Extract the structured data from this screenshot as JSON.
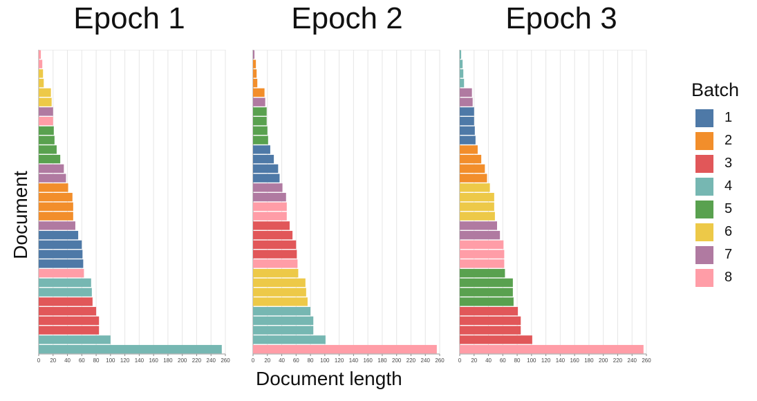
{
  "legend": {
    "title": "Batch",
    "items": [
      {
        "label": "1",
        "color": "#4e79a7"
      },
      {
        "label": "2",
        "color": "#f28e2b"
      },
      {
        "label": "3",
        "color": "#e15759"
      },
      {
        "label": "4",
        "color": "#76b7b2"
      },
      {
        "label": "5",
        "color": "#59a14f"
      },
      {
        "label": "6",
        "color": "#edc948"
      },
      {
        "label": "7",
        "color": "#b07aa1"
      },
      {
        "label": "8",
        "color": "#ff9da7"
      }
    ]
  },
  "axes": {
    "xlabel": "Document length",
    "ylabel": "Document"
  },
  "chart_data": [
    {
      "type": "bar",
      "title": "Epoch 1",
      "xlim": [
        0,
        260
      ],
      "xticks": [
        0,
        20,
        40,
        60,
        80,
        100,
        120,
        140,
        160,
        180,
        200,
        220,
        240,
        260
      ],
      "bars": [
        {
          "batch": "8",
          "value": 3
        },
        {
          "batch": "8",
          "value": 5
        },
        {
          "batch": "6",
          "value": 6
        },
        {
          "batch": "6",
          "value": 7
        },
        {
          "batch": "6",
          "value": 17
        },
        {
          "batch": "6",
          "value": 18
        },
        {
          "batch": "7",
          "value": 20
        },
        {
          "batch": "8",
          "value": 20
        },
        {
          "batch": "5",
          "value": 21
        },
        {
          "batch": "5",
          "value": 22
        },
        {
          "batch": "5",
          "value": 25
        },
        {
          "batch": "5",
          "value": 30
        },
        {
          "batch": "7",
          "value": 35
        },
        {
          "batch": "7",
          "value": 38
        },
        {
          "batch": "2",
          "value": 41
        },
        {
          "batch": "2",
          "value": 47
        },
        {
          "batch": "2",
          "value": 48
        },
        {
          "batch": "2",
          "value": 48
        },
        {
          "batch": "7",
          "value": 51
        },
        {
          "batch": "1",
          "value": 55
        },
        {
          "batch": "1",
          "value": 60
        },
        {
          "batch": "1",
          "value": 61
        },
        {
          "batch": "1",
          "value": 62
        },
        {
          "batch": "8",
          "value": 63
        },
        {
          "batch": "4",
          "value": 73
        },
        {
          "batch": "4",
          "value": 74
        },
        {
          "batch": "3",
          "value": 75
        },
        {
          "batch": "3",
          "value": 80
        },
        {
          "batch": "3",
          "value": 84
        },
        {
          "batch": "3",
          "value": 84
        },
        {
          "batch": "4",
          "value": 100
        },
        {
          "batch": "4",
          "value": 255
        }
      ]
    },
    {
      "type": "bar",
      "title": "Epoch 2",
      "xlim": [
        0,
        260
      ],
      "xticks": [
        0,
        20,
        40,
        60,
        80,
        100,
        120,
        140,
        160,
        180,
        200,
        220,
        240,
        260
      ],
      "bars": [
        {
          "batch": "7",
          "value": 2
        },
        {
          "batch": "2",
          "value": 4
        },
        {
          "batch": "2",
          "value": 5
        },
        {
          "batch": "2",
          "value": 6
        },
        {
          "batch": "2",
          "value": 16
        },
        {
          "batch": "7",
          "value": 17
        },
        {
          "batch": "5",
          "value": 19
        },
        {
          "batch": "5",
          "value": 19
        },
        {
          "batch": "5",
          "value": 20
        },
        {
          "batch": "5",
          "value": 21
        },
        {
          "batch": "1",
          "value": 24
        },
        {
          "batch": "1",
          "value": 29
        },
        {
          "batch": "1",
          "value": 35
        },
        {
          "batch": "1",
          "value": 37
        },
        {
          "batch": "7",
          "value": 41
        },
        {
          "batch": "7",
          "value": 46
        },
        {
          "batch": "8",
          "value": 47
        },
        {
          "batch": "8",
          "value": 47
        },
        {
          "batch": "3",
          "value": 51
        },
        {
          "batch": "3",
          "value": 55
        },
        {
          "batch": "3",
          "value": 60
        },
        {
          "batch": "3",
          "value": 61
        },
        {
          "batch": "8",
          "value": 62
        },
        {
          "batch": "6",
          "value": 63
        },
        {
          "batch": "6",
          "value": 73
        },
        {
          "batch": "6",
          "value": 74
        },
        {
          "batch": "6",
          "value": 76
        },
        {
          "batch": "4",
          "value": 80
        },
        {
          "batch": "4",
          "value": 84
        },
        {
          "batch": "4",
          "value": 84
        },
        {
          "batch": "4",
          "value": 101
        },
        {
          "batch": "8",
          "value": 256
        }
      ]
    },
    {
      "type": "bar",
      "title": "Epoch 3",
      "xlim": [
        0,
        260
      ],
      "xticks": [
        0,
        20,
        40,
        60,
        80,
        100,
        120,
        140,
        160,
        180,
        200,
        220,
        240,
        260
      ],
      "bars": [
        {
          "batch": "4",
          "value": 2
        },
        {
          "batch": "4",
          "value": 4
        },
        {
          "batch": "4",
          "value": 5
        },
        {
          "batch": "4",
          "value": 6
        },
        {
          "batch": "7",
          "value": 17
        },
        {
          "batch": "7",
          "value": 18
        },
        {
          "batch": "1",
          "value": 20
        },
        {
          "batch": "1",
          "value": 20
        },
        {
          "batch": "1",
          "value": 21
        },
        {
          "batch": "1",
          "value": 22
        },
        {
          "batch": "2",
          "value": 25
        },
        {
          "batch": "2",
          "value": 30
        },
        {
          "batch": "2",
          "value": 35
        },
        {
          "batch": "2",
          "value": 38
        },
        {
          "batch": "6",
          "value": 42
        },
        {
          "batch": "6",
          "value": 48
        },
        {
          "batch": "6",
          "value": 48
        },
        {
          "batch": "6",
          "value": 49
        },
        {
          "batch": "7",
          "value": 52
        },
        {
          "batch": "7",
          "value": 56
        },
        {
          "batch": "8",
          "value": 61
        },
        {
          "batch": "8",
          "value": 62
        },
        {
          "batch": "8",
          "value": 62
        },
        {
          "batch": "5",
          "value": 63
        },
        {
          "batch": "5",
          "value": 74
        },
        {
          "batch": "5",
          "value": 74
        },
        {
          "batch": "5",
          "value": 75
        },
        {
          "batch": "3",
          "value": 81
        },
        {
          "batch": "3",
          "value": 85
        },
        {
          "batch": "3",
          "value": 85
        },
        {
          "batch": "3",
          "value": 101
        },
        {
          "batch": "8",
          "value": 256
        }
      ]
    }
  ]
}
